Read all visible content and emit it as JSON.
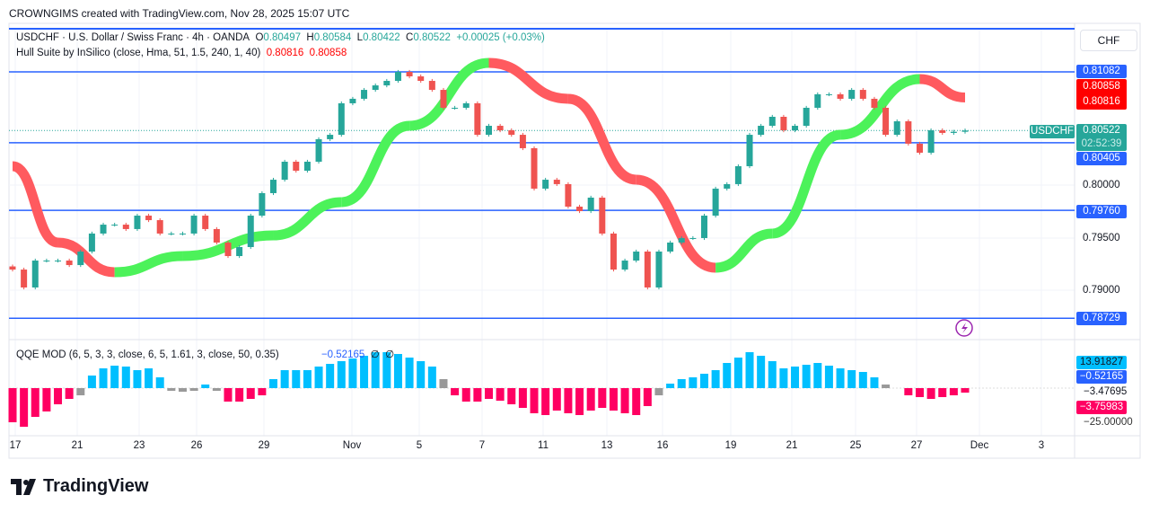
{
  "credit": "CROWNGIMS created with TradingView.com, Nov 28, 2025 15:07 UTC",
  "symbol": {
    "title": "USDCHF · U.S. Dollar / Swiss Franc · 4h · OANDA",
    "o_label": "O",
    "o": "0.80497",
    "h_label": "H",
    "h": "0.80584",
    "l_label": "L",
    "l": "0.80422",
    "c_label": "C",
    "c": "0.80522",
    "change": "+0.00025 (+0.03%)"
  },
  "hull": {
    "label": "Hull Suite by InSilico (close, Hma, 51, 1.5, 240, 1, 40)",
    "v1": "0.80816",
    "v2": "0.80858"
  },
  "qqe": {
    "label": "QQE MOD (6, 5, 3, 3, close, 6, 5, 1.61, 3, close, 50, 0.35)",
    "value": "−0.52165",
    "na1": "∅",
    "na2": "∅"
  },
  "currency": "CHF",
  "price_axis": {
    "ticks": [
      "0.80000",
      "0.79500",
      "0.79000"
    ],
    "levels": [
      "0.81082",
      "0.80405",
      "0.79760",
      "0.78729"
    ],
    "hull_labels": [
      "0.80858",
      "0.80816"
    ],
    "symbol_tag": "USDCHF",
    "last": "0.80522",
    "countdown": "02:52:39"
  },
  "qqe_axis": {
    "v1": "13.91827",
    "v2": "−0.52165",
    "v3": "−3.47695",
    "v4": "−3.75983",
    "v5": "−25.00000"
  },
  "time_axis": [
    "17",
    "21",
    "23",
    "26",
    "29",
    "Nov",
    "5",
    "7",
    "11",
    "13",
    "16",
    "19",
    "21",
    "25",
    "27",
    "Dec",
    "3"
  ],
  "brand": "TradingView",
  "colors": {
    "up": "#26a69a",
    "down": "#ef5350",
    "level": "#2962ff",
    "hma_up": "#4cf25a",
    "hma_down": "#ff5a5f",
    "qqe_up": "#00bfff",
    "qqe_down": "#ff0062",
    "qqe_neutral": "#999999"
  },
  "chart_data": {
    "type": "candlestick",
    "interval": "4h",
    "closes": [
      0.79194,
      0.79023,
      0.7928,
      0.7928,
      0.7928,
      0.79237,
      0.79366,
      0.79538,
      0.79623,
      0.79623,
      0.79581,
      0.79709,
      0.79666,
      0.79538,
      0.79538,
      0.79538,
      0.79709,
      0.79581,
      0.79452,
      0.79323,
      0.79409,
      0.79709,
      0.79924,
      0.80052,
      0.80224,
      0.80138,
      0.80224,
      0.80439,
      0.80481,
      0.80782,
      0.80825,
      0.8091,
      0.80953,
      0.80996,
      0.81082,
      0.81039,
      0.80996,
      0.8091,
      0.80739,
      0.80739,
      0.80782,
      0.80481,
      0.80567,
      0.80524,
      0.80481,
      0.80353,
      0.79967,
      0.80052,
      0.8001,
      0.79795,
      0.79752,
      0.79881,
      0.79538,
      0.79194,
      0.7928,
      0.79366,
      0.79023,
      0.79366,
      0.79452,
      0.79495,
      0.79495,
      0.79709,
      0.79967,
      0.8001,
      0.80181,
      0.80481,
      0.80567,
      0.80653,
      0.80524,
      0.80567,
      0.80739,
      0.80868,
      0.80868,
      0.80825,
      0.8091,
      0.80825,
      0.80739,
      0.80481,
      0.8061,
      0.80396,
      0.8031,
      0.80524,
      0.80499,
      0.8051,
      0.80522
    ],
    "hma": [
      {
        "i": 0,
        "v": 0.80181
      },
      {
        "i": 4,
        "v": 0.79452
      },
      {
        "i": 9,
        "v": 0.79169
      },
      {
        "i": 15,
        "v": 0.79323
      },
      {
        "i": 23,
        "v": 0.7952
      },
      {
        "i": 29,
        "v": 0.79838
      },
      {
        "i": 35,
        "v": 0.80567
      },
      {
        "i": 42,
        "v": 0.81168
      },
      {
        "i": 49,
        "v": 0.80825
      },
      {
        "i": 55,
        "v": 0.80052
      },
      {
        "i": 62,
        "v": 0.79212
      },
      {
        "i": 67,
        "v": 0.79538
      },
      {
        "i": 73,
        "v": 0.80481
      },
      {
        "i": 80,
        "v": 0.81013
      },
      {
        "i": 84,
        "v": 0.80837
      }
    ],
    "qqe_hist": [
      -38,
      -43,
      -32,
      -26,
      -18,
      -12,
      -8,
      14,
      22,
      25,
      24,
      20,
      22,
      12,
      -3,
      -4,
      -3,
      4,
      -3,
      -15,
      -15,
      -12,
      -8,
      10,
      20,
      20,
      20,
      24,
      27,
      30,
      33,
      36,
      40,
      40,
      38,
      34,
      30,
      24,
      10,
      -8,
      -15,
      -15,
      -12,
      -14,
      -18,
      -22,
      -28,
      -30,
      -25,
      -28,
      -30,
      -25,
      -22,
      -25,
      -28,
      -30,
      -20,
      -8,
      5,
      10,
      12,
      16,
      20,
      28,
      34,
      40,
      36,
      30,
      22,
      24,
      26,
      28,
      25,
      22,
      20,
      18,
      12,
      4,
      0,
      -8,
      -10,
      -12,
      -10,
      -8,
      -5
    ],
    "qqe_neutral_bars": [
      6,
      14,
      15,
      16,
      18,
      38,
      57,
      77
    ],
    "price_range": [
      0.786,
      0.815
    ]
  }
}
